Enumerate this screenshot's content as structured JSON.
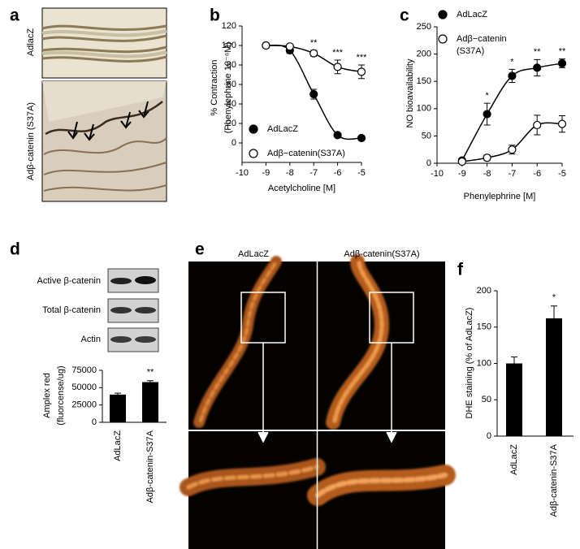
{
  "panel_labels": [
    "a",
    "b",
    "c",
    "d",
    "e",
    "f"
  ],
  "panel_a": {
    "images": [
      {
        "label": "AdlacZ"
      },
      {
        "label": "Adβ-catenin (S37A)"
      }
    ]
  },
  "panel_d_blot": {
    "rows": [
      "Active β-catenin",
      "Total β-catenin",
      "Actin"
    ]
  },
  "panel_e": {
    "columns": [
      "AdLacZ",
      "Adβ-catenin(S37A)"
    ]
  },
  "chart_data": [
    {
      "type": "line",
      "y_label": [
        "% Contraction",
        "(Phenylephrine 10⁻⁶M)"
      ],
      "x_label": "Acetylcholine [M]",
      "xlim": [
        -10,
        -5
      ],
      "xticks": [
        -10,
        -9,
        -8,
        -7,
        -6,
        -5
      ],
      "ylim": [
        -20,
        120
      ],
      "yticks": [
        0,
        20,
        40,
        60,
        80,
        100,
        120
      ],
      "x": [
        -9,
        -8,
        -7,
        -6,
        -5
      ],
      "series": [
        {
          "name": "AdLacZ",
          "marker": "filled",
          "color": "#000000",
          "values": [
            100,
            95,
            50,
            8,
            5
          ],
          "errors": [
            2,
            3,
            5,
            2,
            1
          ]
        },
        {
          "name": "Adβ−catenin(S37A)",
          "marker": "open",
          "color": "#000000",
          "values": [
            100,
            99,
            92,
            78,
            73
          ],
          "errors": [
            2,
            2,
            3,
            7,
            7
          ],
          "significance": [
            null,
            null,
            "**",
            "***",
            "***"
          ]
        }
      ]
    },
    {
      "type": "line",
      "y_label": [
        "NO bioavailability"
      ],
      "x_label": "Phenylephrine [M]",
      "xlim": [
        -10,
        -5
      ],
      "xticks": [
        -10,
        -9,
        -8,
        -7,
        -6,
        -5
      ],
      "ylim": [
        0,
        250
      ],
      "yticks": [
        0,
        50,
        100,
        150,
        200,
        250
      ],
      "x": [
        -9,
        -8,
        -7,
        -6,
        -5
      ],
      "series": [
        {
          "name": "AdLacZ",
          "marker": "filled",
          "color": "#000000",
          "values": [
            5,
            90,
            160,
            175,
            183
          ],
          "errors": [
            3,
            20,
            12,
            15,
            8
          ],
          "significance": [
            null,
            "*",
            "*",
            "**",
            "**"
          ]
        },
        {
          "name": "Adβ−catenin (S37A)",
          "marker": "open",
          "color": "#000000",
          "values": [
            3,
            10,
            25,
            70,
            72
          ],
          "errors": [
            2,
            5,
            8,
            18,
            15
          ]
        }
      ]
    },
    {
      "type": "bar",
      "y_label": [
        "Amplex red",
        "(fluorcense/ug)"
      ],
      "categories": [
        "AdLacZ",
        "Adβ-catenin-S37A"
      ],
      "values": [
        40000,
        58000
      ],
      "errors": [
        2000,
        2000
      ],
      "significance": [
        null,
        "**"
      ],
      "color": "#000000",
      "ylim": [
        0,
        75000
      ],
      "yticks": [
        0,
        25000,
        50000,
        75000
      ]
    },
    {
      "type": "bar",
      "y_label": [
        "DHE staining (% of AdLacZ)"
      ],
      "categories": [
        "AdLacZ",
        "Adβ-catenin-S37A"
      ],
      "values": [
        100,
        162
      ],
      "errors": [
        9,
        17
      ],
      "significance": [
        null,
        "*"
      ],
      "color": "#000000",
      "ylim": [
        0,
        200
      ],
      "yticks": [
        0,
        50,
        100,
        150,
        200
      ]
    }
  ]
}
